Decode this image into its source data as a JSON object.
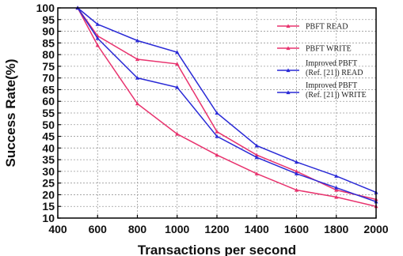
{
  "chart_data": {
    "type": "line",
    "title": "",
    "xlabel": "Transactions per second",
    "ylabel": "Success Rate(%)",
    "xlim": [
      400,
      2000
    ],
    "ylim": [
      10,
      100
    ],
    "xticks": [
      "400",
      "600",
      "800",
      "1000",
      "1200",
      "1400",
      "1600",
      "1800",
      "2000"
    ],
    "yticks": [
      "10",
      "15",
      "20",
      "25",
      "30",
      "35",
      "40",
      "45",
      "50",
      "55",
      "60",
      "65",
      "70",
      "75",
      "80",
      "85",
      "90",
      "95",
      "100"
    ],
    "grid": true,
    "legend_position": "top-right",
    "x": [
      500,
      600,
      800,
      1000,
      1200,
      1400,
      1600,
      1800,
      2000
    ],
    "series": [
      {
        "name": "PBFT READ",
        "color": "#e8336e",
        "marker": "triangle",
        "values": [
          100,
          88,
          78,
          76,
          47,
          37,
          30,
          22,
          18
        ]
      },
      {
        "name": "PBFT WRITE",
        "color": "#e8336e",
        "marker": "triangle",
        "values": [
          100,
          84,
          59,
          46,
          37,
          29,
          22,
          19,
          15
        ]
      },
      {
        "name": "Improved PBFT (Ref. [21]) READ",
        "legend_lines": [
          "Improved PBFT",
          "(Ref. [21]) READ"
        ],
        "color": "#2a2ad6",
        "marker": "triangle",
        "values": [
          100,
          93,
          86,
          81,
          55,
          41,
          34,
          28,
          21
        ]
      },
      {
        "name": "Improved PBFT (Ref. [21]) WRITE",
        "legend_lines": [
          "Improved PBFT",
          "(Ref. [21]) WRITE"
        ],
        "color": "#2a2ad6",
        "marker": "triangle",
        "values": [
          100,
          87,
          70,
          66,
          45,
          36,
          29,
          23,
          17
        ]
      }
    ]
  }
}
